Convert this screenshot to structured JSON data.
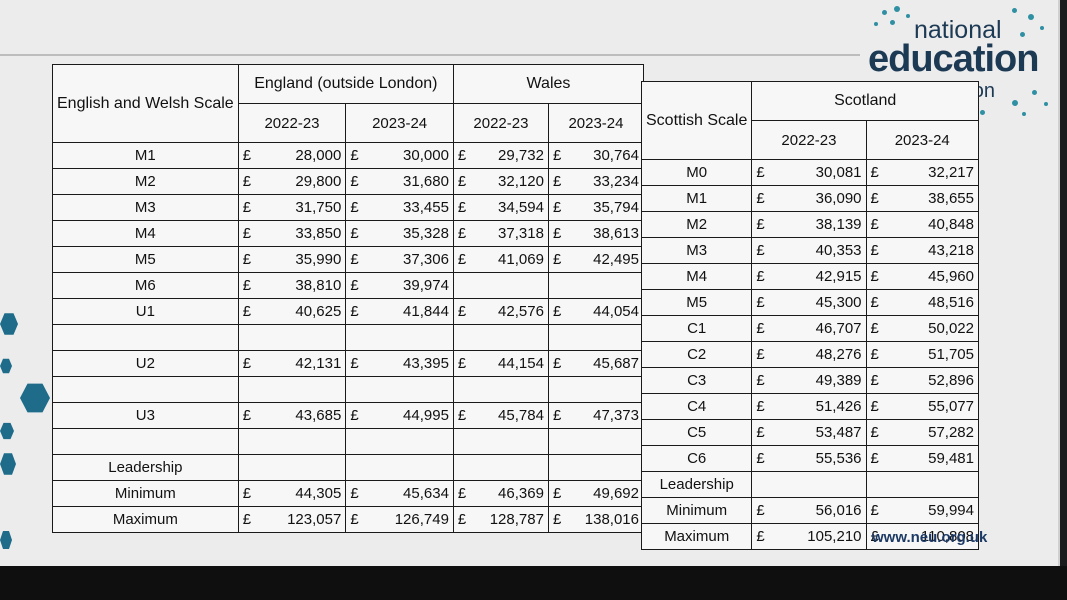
{
  "logo": {
    "line1": "national",
    "line2": "education",
    "line3": "union"
  },
  "footer": {
    "url": "www.neu.org.uk"
  },
  "currency_symbol": "£",
  "left_table": {
    "scale_header": "English and Welsh Scale",
    "england_header": "England (outside London)",
    "wales_header": "Wales",
    "year1": "2022-23",
    "year2": "2023-24",
    "rows": [
      {
        "grade": "M1",
        "e1": "28,000",
        "e2": "30,000",
        "w1": "29,732",
        "w2": "30,764"
      },
      {
        "grade": "M2",
        "e1": "29,800",
        "e2": "31,680",
        "w1": "32,120",
        "w2": "33,234"
      },
      {
        "grade": "M3",
        "e1": "31,750",
        "e2": "33,455",
        "w1": "34,594",
        "w2": "35,794"
      },
      {
        "grade": "M4",
        "e1": "33,850",
        "e2": "35,328",
        "w1": "37,318",
        "w2": "38,613"
      },
      {
        "grade": "M5",
        "e1": "35,990",
        "e2": "37,306",
        "w1": "41,069",
        "w2": "42,495"
      },
      {
        "grade": "M6",
        "e1": "38,810",
        "e2": "39,974",
        "w1": "",
        "w2": ""
      },
      {
        "grade": "U1",
        "e1": "40,625",
        "e2": "41,844",
        "w1": "42,576",
        "w2": "44,054"
      },
      {
        "grade": "",
        "e1": "",
        "e2": "",
        "w1": "",
        "w2": ""
      },
      {
        "grade": "U2",
        "e1": "42,131",
        "e2": "43,395",
        "w1": "44,154",
        "w2": "45,687"
      },
      {
        "grade": "",
        "e1": "",
        "e2": "",
        "w1": "",
        "w2": ""
      },
      {
        "grade": "U3",
        "e1": "43,685",
        "e2": "44,995",
        "w1": "45,784",
        "w2": "47,373"
      },
      {
        "grade": "",
        "e1": "",
        "e2": "",
        "w1": "",
        "w2": ""
      },
      {
        "grade": "Leadership",
        "e1": "",
        "e2": "",
        "w1": "",
        "w2": ""
      },
      {
        "grade": "Minimum",
        "e1": "44,305",
        "e2": "45,634",
        "w1": "46,369",
        "w2": "49,692"
      },
      {
        "grade": "Maximum",
        "e1": "123,057",
        "e2": "126,749",
        "w1": "128,787",
        "w2": "138,016"
      }
    ]
  },
  "right_table": {
    "scale_header": "Scottish Scale",
    "scotland_header": "Scotland",
    "year1": "2022-23",
    "year2": "2023-24",
    "rows": [
      {
        "grade": "M0",
        "s1": "30,081",
        "s2": "32,217"
      },
      {
        "grade": "M1",
        "s1": "36,090",
        "s2": "38,655"
      },
      {
        "grade": "M2",
        "s1": "38,139",
        "s2": "40,848"
      },
      {
        "grade": "M3",
        "s1": "40,353",
        "s2": "43,218"
      },
      {
        "grade": "M4",
        "s1": "42,915",
        "s2": "45,960"
      },
      {
        "grade": "M5",
        "s1": "45,300",
        "s2": "48,516"
      },
      {
        "grade": "C1",
        "s1": "46,707",
        "s2": "50,022"
      },
      {
        "grade": "C2",
        "s1": "48,276",
        "s2": "51,705"
      },
      {
        "grade": "C3",
        "s1": "49,389",
        "s2": "52,896"
      },
      {
        "grade": "C4",
        "s1": "51,426",
        "s2": "55,077"
      },
      {
        "grade": "C5",
        "s1": "53,487",
        "s2": "57,282"
      },
      {
        "grade": "C6",
        "s1": "55,536",
        "s2": "59,481"
      },
      {
        "grade": "Leadership",
        "s1": "",
        "s2": ""
      },
      {
        "grade": "Minimum",
        "s1": "56,016",
        "s2": "59,994"
      },
      {
        "grade": "Maximum",
        "s1": "105,210",
        "s2": "110,808"
      }
    ]
  }
}
